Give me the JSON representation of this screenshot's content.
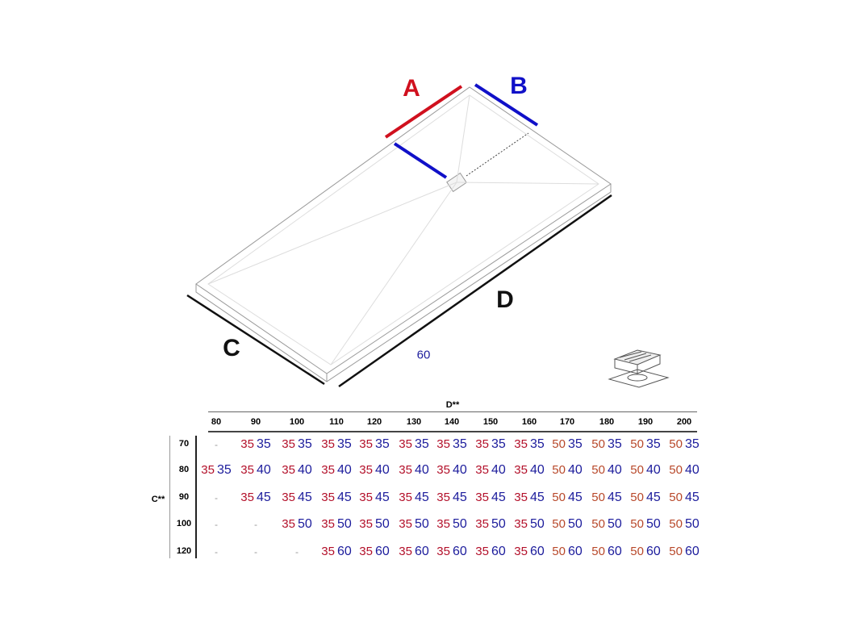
{
  "labels": {
    "A": "A",
    "B": "B",
    "C": "C",
    "D": "D",
    "sixty": "60"
  },
  "colors": {
    "red": "#d0101e",
    "blue": "#1010c8",
    "val35": "#b3102a",
    "val50": "#b8482a",
    "valB": "#1c1c9c"
  },
  "table": {
    "d_header": "D**",
    "c_header": "C**",
    "columns": [
      "80",
      "90",
      "100",
      "110",
      "120",
      "130",
      "140",
      "150",
      "160",
      "170",
      "180",
      "190",
      "200"
    ],
    "rows": [
      {
        "c": "70",
        "cells": [
          "-",
          "35 35",
          "35 35",
          "35 35",
          "35 35",
          "35 35",
          "35 35",
          "35 35",
          "35 35",
          "50 35",
          "50 35",
          "50 35",
          "50 35"
        ]
      },
      {
        "c": "80",
        "cells": [
          "35 35",
          "35 40",
          "35 40",
          "35 40",
          "35 40",
          "35 40",
          "35 40",
          "35 40",
          "35 40",
          "50 40",
          "50 40",
          "50 40",
          "50 40"
        ]
      },
      {
        "c": "90",
        "cells": [
          "-",
          "35 45",
          "35 45",
          "35 45",
          "35 45",
          "35 45",
          "35 45",
          "35 45",
          "35 45",
          "50 45",
          "50 45",
          "50 45",
          "50 45"
        ]
      },
      {
        "c": "100",
        "cells": [
          "-",
          "-",
          "35 50",
          "35 50",
          "35 50",
          "35 50",
          "35 50",
          "35 50",
          "35 50",
          "50 50",
          "50 50",
          "50 50",
          "50 50"
        ]
      },
      {
        "c": "120",
        "cells": [
          "-",
          "-",
          "-",
          "35 60",
          "35 60",
          "35 60",
          "35 60",
          "35 60",
          "35 60",
          "50 60",
          "50 60",
          "50 60",
          "50 60"
        ]
      }
    ]
  }
}
